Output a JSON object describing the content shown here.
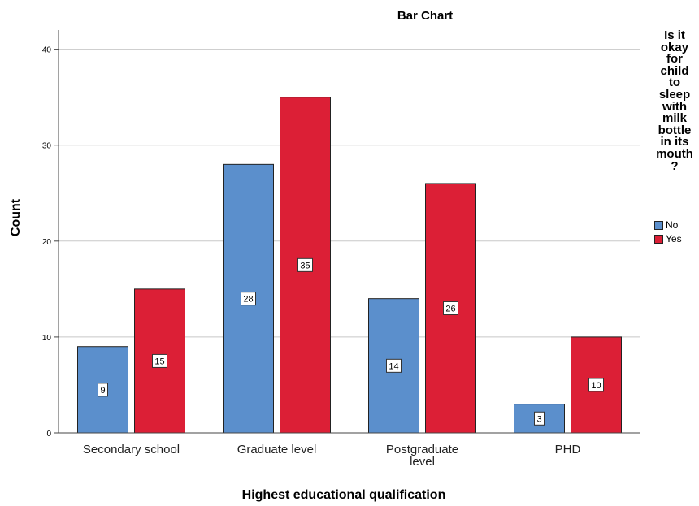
{
  "chart_data": {
    "type": "bar",
    "title": "Bar Chart",
    "xlabel": "Highest educational qualification",
    "ylabel": "Count",
    "categories": [
      "Secondary school",
      "Graduate level",
      "Postgraduate level",
      "PHD"
    ],
    "series": [
      {
        "name": "No",
        "color": "#5b8fcc",
        "values": [
          9,
          28,
          14,
          3
        ]
      },
      {
        "name": "Yes",
        "color": "#dc1f36",
        "values": [
          15,
          35,
          26,
          10
        ]
      }
    ],
    "ylim": [
      0,
      42
    ],
    "yticks": [
      0,
      10,
      20,
      30,
      40
    ],
    "grid": true,
    "legend": {
      "title": "Is it okay for child to sleep with milk bottle in its mouth ?",
      "title_lines": [
        "Is it",
        "okay",
        "for",
        "child",
        "to",
        "sleep",
        "with",
        "milk",
        "bottle",
        "in its",
        "mouth",
        "?"
      ],
      "placement": "right"
    }
  }
}
